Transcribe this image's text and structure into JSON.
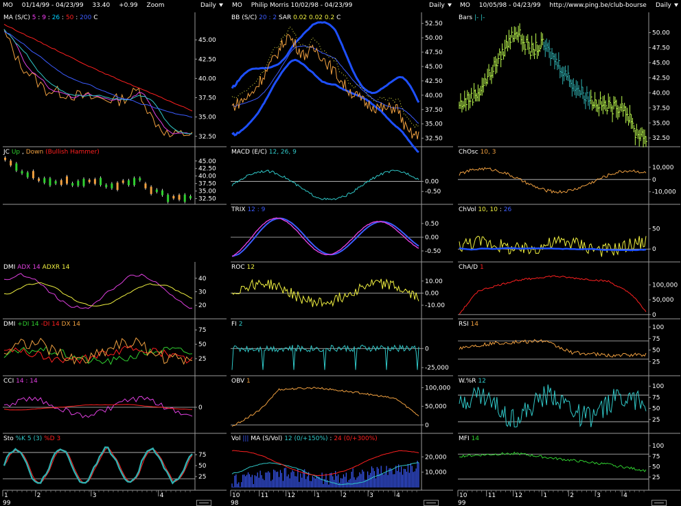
{
  "headers": [
    {
      "sym": "MO",
      "dates": "01/14/99 - 04/23/99",
      "last": "33.40",
      "chg": "+0.99",
      "extra": "Zoom",
      "period": "Daily"
    },
    {
      "sym": "MO",
      "dates": "Philip Morris   10/02/98 - 04/23/99",
      "last": "",
      "chg": "",
      "extra": "",
      "period": "Daily"
    },
    {
      "sym": "MO",
      "dates": "10/05/98 - 04/23/99",
      "last": "",
      "chg": "",
      "extra": "http://www.ping.be/club-bourse",
      "period": "Daily"
    }
  ],
  "colors": {
    "bg": "#000000",
    "axis": "#9a9a9a",
    "ref": "#c8c8c8",
    "white": "#ffffff",
    "magenta": "#e040e0",
    "blue": "#3c5cff",
    "cyan": "#30c8c8",
    "red": "#ff2020",
    "orange": "#f0a040",
    "yellow": "#f0f040",
    "green": "#30d030",
    "lightgreen": "#c0ff50",
    "thickblue": "#1e50ff",
    "teal": "#30b0b0"
  },
  "chart_data": [
    {
      "id": "ma",
      "col": 0,
      "row": 0,
      "type": "line",
      "title": "MA (S/C)",
      "legend": [
        {
          "t": "MA (S/C)",
          "c": "#ffffff"
        },
        {
          "t": "5",
          "c": "#ff40ff"
        },
        {
          "t": ":",
          "c": "#ffffff"
        },
        {
          "t": "9",
          "c": "#ff40ff"
        },
        {
          "t": ":",
          "c": "#ffffff"
        },
        {
          "t": "26",
          "c": "#00d0ff"
        },
        {
          "t": ":",
          "c": "#ffffff"
        },
        {
          "t": "50",
          "c": "#ff2020"
        },
        {
          "t": ":",
          "c": "#ffffff"
        },
        {
          "t": "200",
          "c": "#3c5cff"
        },
        {
          "t": "   C",
          "c": "#ffffff"
        }
      ],
      "ylim": [
        31.5,
        47.5
      ],
      "ticks": [
        "45.00",
        "42.50",
        "40.00",
        "37.50",
        "35.00",
        "32.50"
      ],
      "tickvals": [
        45,
        42.5,
        40,
        37.5,
        35,
        32.5
      ],
      "refs": [],
      "n": 68,
      "seeds": [
        {
          "kind": "price",
          "color": "#f0a040",
          "w": 1
        },
        {
          "kind": "ma5",
          "color": "#e040e0",
          "w": 1
        },
        {
          "kind": "ma9",
          "color": "#30c8c8",
          "w": 1
        },
        {
          "kind": "ma26",
          "color": "#3c5cff",
          "w": 1
        },
        {
          "kind": "ma50",
          "color": "#ff2020",
          "w": 1
        }
      ]
    },
    {
      "id": "bb",
      "col": 1,
      "row": 0,
      "type": "line",
      "title": "BB (S/C)",
      "legend": [
        {
          "t": "BB (S/C)",
          "c": "#ffffff"
        },
        {
          "t": "20 : 2",
          "c": "#3c5cff"
        },
        {
          "t": "  SAR",
          "c": "#ffffff"
        },
        {
          "t": "0.02",
          "c": "#f0f040"
        },
        {
          "t": "0.02",
          "c": "#f0f040"
        },
        {
          "t": "0.2",
          "c": "#f0f040"
        },
        {
          "t": "   C",
          "c": "#ffffff"
        }
      ],
      "ylim": [
        31.5,
        53
      ],
      "ticks": [
        "52.50",
        "50.00",
        "47.50",
        "45.00",
        "42.50",
        "40.00",
        "37.50",
        "35.00",
        "32.50"
      ],
      "tickvals": [
        52.5,
        50,
        47.5,
        45,
        42.5,
        40,
        37.5,
        35,
        32.5
      ],
      "refs": [],
      "n": 140
    },
    {
      "id": "bars",
      "col": 2,
      "row": 0,
      "type": "ohlc",
      "title": "Bars",
      "legend": [
        {
          "t": "Bars",
          "c": "#ffffff"
        },
        {
          "t": "|-  |-",
          "c": "#30d0d0"
        }
      ],
      "ylim": [
        31.5,
        52
      ],
      "ticks": [
        "50.00",
        "47.50",
        "45.00",
        "42.50",
        "40.00",
        "37.50",
        "35.00",
        "32.50"
      ],
      "tickvals": [
        50,
        47.5,
        45,
        42.5,
        40,
        37.5,
        35,
        32.5
      ],
      "refs": [],
      "n": 140
    },
    {
      "id": "jc",
      "col": 0,
      "row": 1,
      "type": "candle",
      "title": "JC",
      "legend": [
        {
          "t": "JC",
          "c": "#ffffff"
        },
        {
          "t": "Up",
          "c": "#30d030"
        },
        {
          "t": ",",
          "c": "#ffffff"
        },
        {
          "t": "Down",
          "c": "#f0a040"
        },
        {
          "t": "(Bullish Hammer)",
          "c": "#ff2020"
        }
      ],
      "ylim": [
        31.5,
        47
      ],
      "ticks": [
        "45.00",
        "42.50",
        "40.00",
        "37.50",
        "35.00",
        "32.50"
      ],
      "tickvals": [
        45,
        42.5,
        40,
        37.5,
        35,
        32.5
      ],
      "refs": [],
      "n": 68
    },
    {
      "id": "macd",
      "col": 1,
      "row": 1,
      "type": "line",
      "title": "MACD (E/C)",
      "legend": [
        {
          "t": "MACD (E/C)",
          "c": "#ffffff"
        },
        {
          "t": "12, 26, 9",
          "c": "#30c8c8"
        }
      ],
      "ylim": [
        -1,
        1.3
      ],
      "ticks": [
        "0.00",
        "-0.50"
      ],
      "tickvals": [
        0,
        -0.5
      ],
      "refs": [
        0
      ],
      "n": 140
    },
    {
      "id": "chosc",
      "col": 2,
      "row": 1,
      "type": "line",
      "title": "ChOsc",
      "legend": [
        {
          "t": "ChOsc",
          "c": "#ffffff"
        },
        {
          "t": "10, 3",
          "c": "#f0a040"
        }
      ],
      "ylim": [
        -18000,
        20000
      ],
      "ticks": [
        "10,000",
        "0",
        "-10,000"
      ],
      "tickvals": [
        10000,
        0,
        -10000
      ],
      "refs": [
        0
      ],
      "n": 140
    },
    {
      "id": "trix",
      "col": 1,
      "row": 2,
      "type": "line",
      "title": "TRIX",
      "legend": [
        {
          "t": "TRIX",
          "c": "#ffffff"
        },
        {
          "t": "12 : 9",
          "c": "#3c5cff"
        }
      ],
      "ylim": [
        -0.8,
        0.9
      ],
      "ticks": [
        "0.50",
        "0.00",
        "-0.50"
      ],
      "tickvals": [
        0.5,
        0,
        -0.5
      ],
      "refs": [
        0
      ],
      "n": 140
    },
    {
      "id": "chvol",
      "col": 2,
      "row": 2,
      "type": "line",
      "title": "ChVol",
      "legend": [
        {
          "t": "ChVol",
          "c": "#ffffff"
        },
        {
          "t": "10, 10",
          "c": "#f0f040"
        },
        {
          "t": ":",
          "c": "#ffffff"
        },
        {
          "t": "26",
          "c": "#3c5cff"
        }
      ],
      "ylim": [
        -25,
        90
      ],
      "ticks": [
        "50",
        "0"
      ],
      "tickvals": [
        50,
        0
      ],
      "refs": [
        0
      ],
      "n": 140
    },
    {
      "id": "dmi1",
      "col": 0,
      "row": 3,
      "type": "line",
      "title": "DMI",
      "legend": [
        {
          "t": "DMI",
          "c": "#ffffff"
        },
        {
          "t": "ADX 14",
          "c": "#e040e0"
        },
        {
          "t": "ADXR 14",
          "c": "#f0f040"
        }
      ],
      "ylim": [
        12,
        46
      ],
      "ticks": [
        "40",
        "30",
        "20"
      ],
      "tickvals": [
        40,
        30,
        20
      ],
      "refs": [],
      "n": 68
    },
    {
      "id": "roc",
      "col": 1,
      "row": 3,
      "type": "line",
      "title": "ROC",
      "legend": [
        {
          "t": "ROC",
          "c": "#ffffff"
        },
        {
          "t": "12",
          "c": "#f0f040"
        }
      ],
      "ylim": [
        -19,
        19
      ],
      "ticks": [
        "10.00",
        "0.00",
        "-10.00"
      ],
      "tickvals": [
        10,
        0,
        -10
      ],
      "refs": [
        0
      ],
      "n": 140
    },
    {
      "id": "chad",
      "col": 2,
      "row": 3,
      "type": "line",
      "title": "ChA/D",
      "legend": [
        {
          "t": "ChA/D",
          "c": "#ffffff"
        },
        {
          "t": "1",
          "c": "#ff2020"
        }
      ],
      "ylim": [
        -5000,
        150000
      ],
      "ticks": [
        "100,000",
        "50,000",
        "0"
      ],
      "tickvals": [
        100000,
        50000,
        0
      ],
      "refs": [
        0
      ],
      "n": 140
    },
    {
      "id": "dmi2",
      "col": 0,
      "row": 4,
      "type": "line",
      "title": "DMI",
      "legend": [
        {
          "t": "DMI",
          "c": "#ffffff"
        },
        {
          "t": "+DI 14",
          "c": "#30d030"
        },
        {
          "t": "-DI 14",
          "c": "#ff2020"
        },
        {
          "t": "DX 14",
          "c": "#f0a040"
        }
      ],
      "ylim": [
        0,
        80
      ],
      "ticks": [
        "75",
        "50",
        "25"
      ],
      "tickvals": [
        75,
        50,
        25
      ],
      "refs": [],
      "n": 68
    },
    {
      "id": "fi",
      "col": 1,
      "row": 4,
      "type": "line",
      "title": "FI",
      "legend": [
        {
          "t": "FI",
          "c": "#ffffff"
        },
        {
          "t": "2",
          "c": "#30c8c8"
        }
      ],
      "ylim": [
        -32000,
        28000
      ],
      "ticks": [
        "0",
        "-25,000"
      ],
      "tickvals": [
        0,
        -25000
      ],
      "refs": [
        0
      ],
      "n": 140
    },
    {
      "id": "rsi",
      "col": 2,
      "row": 4,
      "type": "line",
      "title": "RSI",
      "legend": [
        {
          "t": "RSI",
          "c": "#ffffff"
        },
        {
          "t": "14",
          "c": "#f0a040"
        }
      ],
      "ylim": [
        0,
        100
      ],
      "ticks": [
        "100",
        "75",
        "50",
        "25"
      ],
      "tickvals": [
        100,
        75,
        50,
        25
      ],
      "refs": [
        70,
        30
      ],
      "n": 140
    },
    {
      "id": "cci",
      "col": 0,
      "row": 5,
      "type": "line",
      "title": "CCI",
      "legend": [
        {
          "t": "CCI",
          "c": "#ffffff"
        },
        {
          "t": "14 : 14",
          "c": "#e040e0"
        }
      ],
      "ylim": [
        -260,
        260
      ],
      "ticks": [
        "0"
      ],
      "tickvals": [
        0
      ],
      "refs": [
        0
      ],
      "n": 68
    },
    {
      "id": "obv",
      "col": 1,
      "row": 5,
      "type": "line",
      "title": "OBV",
      "legend": [
        {
          "t": "OBV",
          "c": "#ffffff"
        },
        {
          "t": "1",
          "c": "#f0a040"
        }
      ],
      "ylim": [
        -15000,
        110000
      ],
      "ticks": [
        "100,000",
        "50,000",
        "0"
      ],
      "tickvals": [
        100000,
        50000,
        0
      ],
      "refs": [
        0
      ],
      "n": 140
    },
    {
      "id": "wr",
      "col": 2,
      "row": 5,
      "type": "line",
      "title": "W.%R",
      "legend": [
        {
          "t": "W.%R",
          "c": "#ffffff"
        },
        {
          "t": "12",
          "c": "#30c8c8"
        }
      ],
      "ylim": [
        0,
        105
      ],
      "ticks": [
        "100",
        "75",
        "50",
        "25"
      ],
      "tickvals": [
        100,
        75,
        50,
        25
      ],
      "refs": [
        80,
        20
      ],
      "n": 140
    },
    {
      "id": "sto",
      "col": 0,
      "row": 6,
      "type": "line",
      "title": "Sto",
      "legend": [
        {
          "t": "Sto",
          "c": "#ffffff"
        },
        {
          "t": "%K 5 (3)",
          "c": "#30c8c8"
        },
        {
          "t": "%D 3",
          "c": "#ff2020"
        }
      ],
      "ylim": [
        0,
        105
      ],
      "ticks": [
        "75",
        "50",
        "25"
      ],
      "tickvals": [
        75,
        50,
        25
      ],
      "refs": [
        80,
        20
      ],
      "n": 68
    },
    {
      "id": "vol",
      "col": 1,
      "row": 6,
      "type": "volume",
      "title": "Vol",
      "legend": [
        {
          "t": "Vol",
          "c": "#ffffff"
        },
        {
          "t": "|||",
          "c": "#3c5cff"
        },
        {
          "t": "  MA (S/Vol)",
          "c": "#ffffff"
        },
        {
          "t": "12 (0/+150%)",
          "c": "#30c8c8"
        },
        {
          "t": ":",
          "c": "#ffffff"
        },
        {
          "t": "24 (0/+300%)",
          "c": "#ff2020"
        }
      ],
      "ylim": [
        0,
        30000
      ],
      "ticks": [
        "20,000",
        "10,000"
      ],
      "tickvals": [
        20000,
        10000
      ],
      "refs": [],
      "n": 140
    },
    {
      "id": "mfi",
      "col": 2,
      "row": 6,
      "type": "line",
      "title": "MFI",
      "legend": [
        {
          "t": "MFI",
          "c": "#ffffff"
        },
        {
          "t": "14",
          "c": "#30d030"
        }
      ],
      "ylim": [
        0,
        110
      ],
      "ticks": [
        "100",
        "75",
        "50",
        "25"
      ],
      "tickvals": [
        100,
        75,
        50,
        25
      ],
      "refs": [
        80,
        20
      ],
      "n": 140
    }
  ],
  "xaxis": [
    {
      "labels": [
        "1",
        "2",
        "3",
        "4"
      ],
      "pos": [
        0.0,
        0.17,
        0.46,
        0.81
      ],
      "year": "99"
    },
    {
      "labels": [
        "10",
        "11",
        "12",
        "1",
        "2",
        "3",
        "4"
      ],
      "pos": [
        0.0,
        0.15,
        0.29,
        0.44,
        0.58,
        0.72,
        0.86
      ],
      "year": "98"
    },
    {
      "labels": [
        "10",
        "11",
        "12",
        "1",
        "2",
        "3",
        "4"
      ],
      "pos": [
        0.0,
        0.15,
        0.29,
        0.44,
        0.58,
        0.72,
        0.86
      ],
      "year": "99"
    }
  ]
}
